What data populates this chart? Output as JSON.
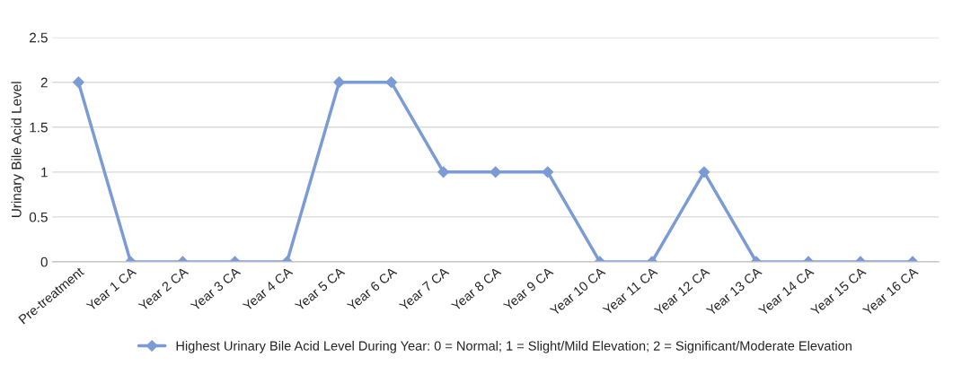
{
  "chart_data": {
    "type": "line",
    "ylabel": "Urinary Bile Acid Level",
    "categories": [
      "Pre-treatment",
      "Year 1 CA",
      "Year 2 CA",
      "Year 3 CA",
      "Year 4 CA",
      "Year 5 CA",
      "Year 6 CA",
      "Year 7 CA",
      "Year 8 CA",
      "Year 9 CA",
      "Year 10 CA",
      "Year 11 CA",
      "Year 12 CA",
      "Year 13 CA",
      "Year 14 CA",
      "Year 15 CA",
      "Year 16 CA"
    ],
    "series": [
      {
        "name": "Highest Urinary Bile Acid Level During Year: 0 = Normal; 1 = Slight/Mild Elevation; 2 = Significant/Moderate Elevation",
        "color": "#7b9bd6",
        "values": [
          2,
          0,
          0,
          0,
          0,
          2,
          2,
          1,
          1,
          1,
          0,
          0,
          1,
          0,
          0,
          0,
          0
        ]
      }
    ],
    "ylim": [
      0,
      2.5
    ],
    "yticks": [
      0,
      0.5,
      1,
      1.5,
      2,
      2.5
    ],
    "grid": "y",
    "legend": "bottom",
    "marker": "diamond",
    "line_style": "solid"
  }
}
